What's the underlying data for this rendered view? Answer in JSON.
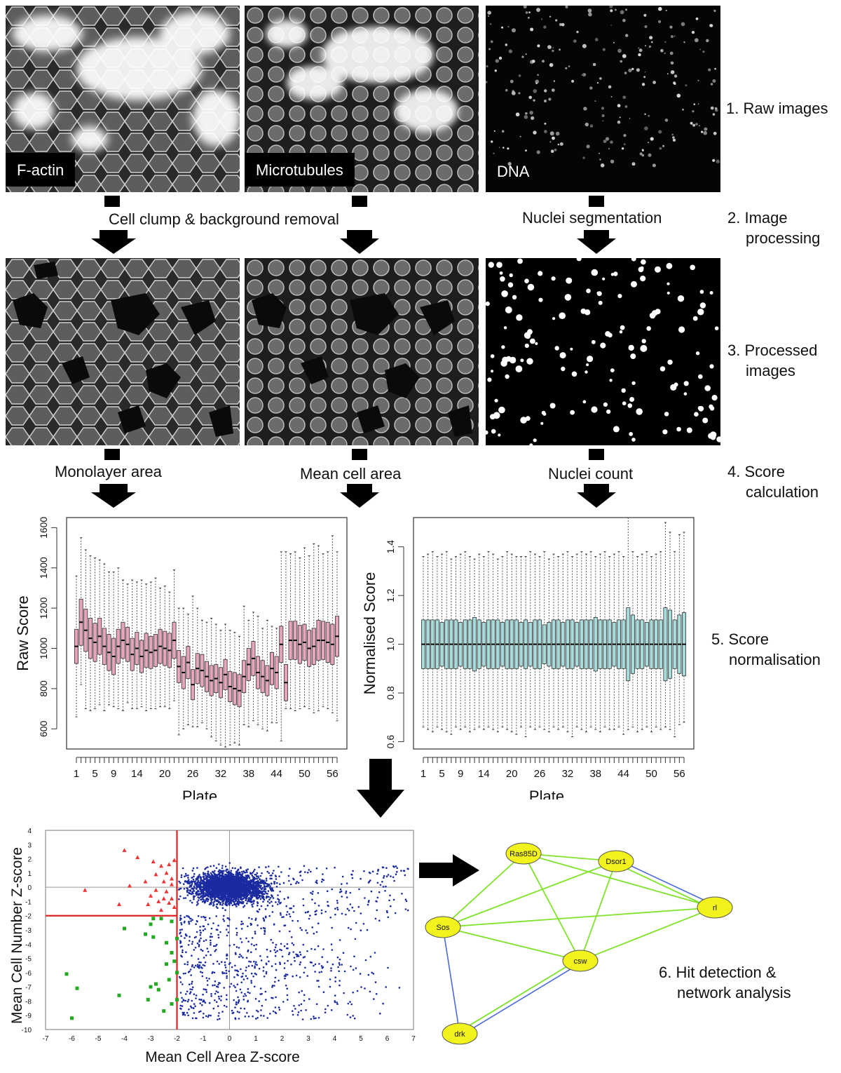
{
  "panels": {
    "raw": {
      "factin_label": "F-actin",
      "microtubules_label": "Microtubules",
      "dna_label": "DNA"
    }
  },
  "steps": {
    "s1": "1. Raw images",
    "s2_a": "2. Image",
    "s2_b": "processing",
    "s3_a": "3. Processed",
    "s3_b": "images",
    "s4_a": "4. Score",
    "s4_b": "calculation",
    "s5_a": "5. Score",
    "s5_b": "normalisation",
    "s6_a": "6. Hit detection &",
    "s6_b": "network analysis"
  },
  "stages": {
    "clump_removal": "Cell clump & background removal",
    "nuclei_segmentation": "Nuclei segmentation",
    "monolayer_area": "Monolayer area",
    "mean_cell_area": "Mean cell area",
    "nuclei_count": "Nuclei count"
  },
  "colors": {
    "raw_box": "#e6a5b8",
    "norm_box": "#a8dcdc",
    "network_node": "#f2f21c",
    "green_edge": "#7fe32a",
    "blue_edge": "#4a6ad8",
    "scatter_blue": "#1a2aa0",
    "scatter_red": "#ee3333",
    "scatter_green": "#22aa22",
    "threshold_line": "#dd2222"
  },
  "chart_data": [
    {
      "type": "box",
      "xlabel": "Plate",
      "ylabel": "Raw Score",
      "ylim": [
        500,
        1650
      ],
      "yticks": [
        600,
        800,
        1000,
        1200,
        1400,
        1600
      ],
      "xtick_labels": [
        "1",
        "5",
        "9",
        "14",
        "20",
        "26",
        "32",
        "38",
        "44",
        "50",
        "56"
      ],
      "plates": 57,
      "medians": [
        1010,
        1130,
        1090,
        1050,
        1030,
        1060,
        1010,
        980,
        960,
        1010,
        1040,
        1020,
        970,
        1000,
        960,
        990,
        980,
        990,
        1010,
        1000,
        990,
        1040,
        910,
        880,
        930,
        820,
        900,
        890,
        860,
        840,
        850,
        830,
        870,
        810,
        800,
        790,
        860,
        920,
        950,
        880,
        860,
        840,
        900,
        880,
        1020,
        830,
        1040,
        1040,
        1020,
        1030,
        1000,
        1010,
        1040,
        1040,
        1030,
        1020,
        1060
      ],
      "box_halfwidth": [
        85,
        115,
        105,
        100,
        95,
        90,
        90,
        90,
        90,
        85,
        90,
        85,
        80,
        80,
        80,
        85,
        80,
        80,
        85,
        85,
        85,
        90,
        80,
        80,
        80,
        75,
        75,
        80,
        75,
        75,
        70,
        75,
        75,
        75,
        80,
        80,
        80,
        80,
        85,
        80,
        80,
        75,
        80,
        80,
        90,
        90,
        95,
        95,
        95,
        90,
        90,
        90,
        100,
        95,
        100,
        100,
        100
      ],
      "whisker_high": [
        1360,
        1550,
        1490,
        1460,
        1450,
        1440,
        1420,
        1380,
        1380,
        1400,
        1340,
        1320,
        1340,
        1330,
        1340,
        1320,
        1330,
        1350,
        1300,
        1310,
        1280,
        1390,
        1200,
        1200,
        1170,
        1260,
        1200,
        1140,
        1130,
        1150,
        1120,
        1090,
        1120,
        1090,
        1080,
        1060,
        1210,
        1140,
        1180,
        1160,
        1100,
        1140,
        1110,
        1100,
        1480,
        1480,
        1470,
        1480,
        1450,
        1500,
        1460,
        1520,
        1510,
        1470,
        1480,
        1560,
        1480
      ],
      "whisker_low": [
        660,
        820,
        700,
        690,
        700,
        720,
        690,
        720,
        710,
        700,
        690,
        730,
        700,
        700,
        710,
        690,
        700,
        700,
        710,
        710,
        700,
        740,
        570,
        600,
        620,
        610,
        610,
        630,
        600,
        560,
        540,
        520,
        510,
        520,
        530,
        520,
        620,
        610,
        640,
        620,
        600,
        590,
        630,
        630,
        540,
        700,
        700,
        690,
        700,
        710,
        700,
        680,
        690,
        710,
        700,
        680,
        640
      ]
    },
    {
      "type": "box",
      "xlabel": "Plate",
      "ylabel": "Normalised Score",
      "ylim": [
        0.57,
        1.52
      ],
      "yticks": [
        0.6,
        0.8,
        1.0,
        1.2,
        1.4
      ],
      "xtick_labels": [
        "1",
        "5",
        "9",
        "14",
        "20",
        "26",
        "32",
        "38",
        "44",
        "50",
        "56"
      ],
      "plates": 57,
      "median": 1.0,
      "box_halfwidth": [
        0.1,
        0.1,
        0.1,
        0.1,
        0.09,
        0.1,
        0.1,
        0.1,
        0.09,
        0.1,
        0.1,
        0.11,
        0.1,
        0.09,
        0.1,
        0.1,
        0.1,
        0.09,
        0.1,
        0.1,
        0.1,
        0.09,
        0.1,
        0.09,
        0.1,
        0.1,
        0.08,
        0.09,
        0.1,
        0.1,
        0.09,
        0.1,
        0.1,
        0.09,
        0.1,
        0.1,
        0.1,
        0.11,
        0.1,
        0.1,
        0.1,
        0.09,
        0.1,
        0.1,
        0.15,
        0.12,
        0.1,
        0.1,
        0.09,
        0.1,
        0.1,
        0.1,
        0.15,
        0.14,
        0.1,
        0.12,
        0.13
      ],
      "whisker_high": [
        1.36,
        1.37,
        1.38,
        1.36,
        1.37,
        1.38,
        1.35,
        1.36,
        1.37,
        1.38,
        1.36,
        1.35,
        1.37,
        1.36,
        1.38,
        1.37,
        1.35,
        1.36,
        1.38,
        1.37,
        1.36,
        1.36,
        1.36,
        1.38,
        1.37,
        1.36,
        1.38,
        1.35,
        1.37,
        1.36,
        1.37,
        1.38,
        1.36,
        1.37,
        1.38,
        1.37,
        1.38,
        1.36,
        1.37,
        1.38,
        1.36,
        1.37,
        1.38,
        1.36,
        1.52,
        1.38,
        1.36,
        1.37,
        1.38,
        1.36,
        1.37,
        1.38,
        1.5,
        1.46,
        1.38,
        1.45,
        1.46
      ],
      "whisker_low": [
        0.66,
        0.65,
        0.64,
        0.66,
        0.65,
        0.64,
        0.63,
        0.66,
        0.65,
        0.66,
        0.64,
        0.65,
        0.66,
        0.65,
        0.66,
        0.65,
        0.64,
        0.66,
        0.65,
        0.64,
        0.63,
        0.66,
        0.62,
        0.66,
        0.65,
        0.66,
        0.65,
        0.64,
        0.66,
        0.65,
        0.66,
        0.64,
        0.62,
        0.66,
        0.65,
        0.64,
        0.66,
        0.65,
        0.64,
        0.66,
        0.65,
        0.65,
        0.66,
        0.63,
        0.65,
        0.66,
        0.64,
        0.65,
        0.66,
        0.64,
        0.66,
        0.65,
        0.66,
        0.65,
        0.62,
        0.67,
        0.68
      ]
    },
    {
      "type": "scatter",
      "xlabel": "Mean Cell Area Z-score",
      "ylabel": "Mean Cell Number Z-score",
      "xlim": [
        -7,
        7
      ],
      "ylim": [
        -10,
        4
      ],
      "xticks": [
        -7,
        -6,
        -5,
        -4,
        -3,
        -2,
        -1,
        0,
        1,
        2,
        3,
        4,
        5,
        6,
        7
      ],
      "yticks": [
        4,
        3,
        2,
        1,
        0,
        -1,
        -2,
        -3,
        -4,
        -5,
        -6,
        -7,
        -8,
        -9,
        -10
      ],
      "threshold_x": -2,
      "threshold_y": -2,
      "hits_red": [
        [
          -5.5,
          -0.2
        ],
        [
          -4.0,
          2.6
        ],
        [
          -4.2,
          -1.2
        ],
        [
          -3.5,
          2.1
        ],
        [
          -3.8,
          0.1
        ],
        [
          -3.2,
          0.4
        ],
        [
          -2.9,
          1.8
        ],
        [
          -2.6,
          1.5
        ],
        [
          -2.3,
          1.6
        ],
        [
          -2.8,
          0.9
        ],
        [
          -2.5,
          0.4
        ],
        [
          -2.2,
          0.6
        ],
        [
          -3.0,
          -0.6
        ],
        [
          -2.7,
          -1.0
        ],
        [
          -2.4,
          -0.3
        ],
        [
          -2.1,
          -1.4
        ],
        [
          -2.6,
          -1.6
        ],
        [
          -3.1,
          -1.2
        ],
        [
          -2.2,
          -0.8
        ],
        [
          -2.4,
          1.0
        ],
        [
          -2.1,
          1.9
        ],
        [
          -2.8,
          -0.2
        ],
        [
          -2.3,
          -1.1
        ],
        [
          -2.2,
          0.2
        ],
        [
          -2.5,
          -0.8
        ]
      ],
      "hits_green": [
        [
          -4.0,
          -2.9
        ],
        [
          -3.0,
          -2.6
        ],
        [
          -2.6,
          -2.2
        ],
        [
          -2.2,
          -2.4
        ],
        [
          -3.2,
          -3.3
        ],
        [
          -2.9,
          -3.5
        ],
        [
          -2.4,
          -3.9
        ],
        [
          -2.2,
          -4.6
        ],
        [
          -2.1,
          -5.2
        ],
        [
          -2.0,
          -6.0
        ],
        [
          -2.3,
          -6.5
        ],
        [
          -2.8,
          -6.8
        ],
        [
          -3.0,
          -7.0
        ],
        [
          -2.7,
          -7.2
        ],
        [
          -3.1,
          -7.9
        ],
        [
          -4.2,
          -7.6
        ],
        [
          -5.8,
          -7.1
        ],
        [
          -6.2,
          -6.1
        ],
        [
          -6.0,
          -9.2
        ],
        [
          -2.0,
          -7.9
        ],
        [
          -2.5,
          -8.7
        ],
        [
          -2.2,
          -8.2
        ],
        [
          -2.0,
          -3.6
        ],
        [
          -2.9,
          -2.2
        ],
        [
          -2.4,
          -5.4
        ]
      ]
    },
    {
      "type": "network",
      "nodes": [
        "Ras85D",
        "Dsor1",
        "rl",
        "Sos",
        "csw",
        "drk"
      ],
      "edges_green": [
        [
          "Ras85D",
          "Dsor1"
        ],
        [
          "Ras85D",
          "rl"
        ],
        [
          "Ras85D",
          "Sos"
        ],
        [
          "Ras85D",
          "csw"
        ],
        [
          "Dsor1",
          "Sos"
        ],
        [
          "Dsor1",
          "csw"
        ],
        [
          "Dsor1",
          "rl"
        ],
        [
          "Sos",
          "csw"
        ],
        [
          "Sos",
          "rl"
        ],
        [
          "csw",
          "rl"
        ],
        [
          "csw",
          "drk"
        ]
      ],
      "edges_blue": [
        [
          "Dsor1",
          "rl"
        ],
        [
          "Sos",
          "drk"
        ],
        [
          "csw",
          "drk"
        ]
      ]
    }
  ]
}
